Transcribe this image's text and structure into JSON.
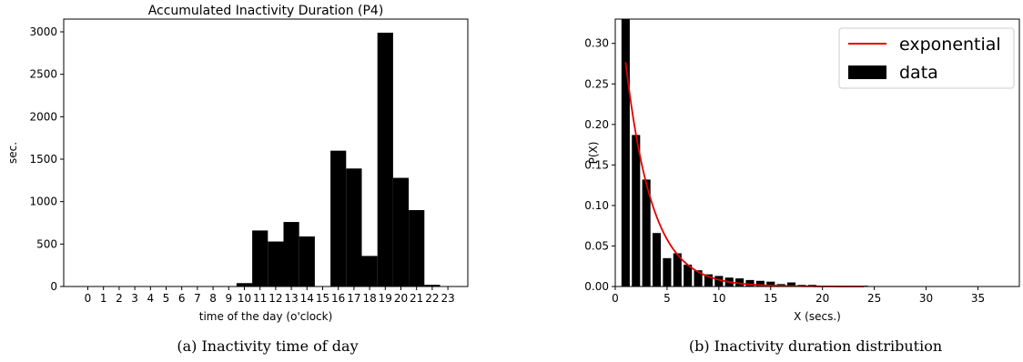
{
  "chart_data": [
    {
      "type": "bar",
      "title": "Accumulated Inactivity Duration (P4)",
      "xlabel": "time of the day (o'clock)",
      "ylabel": "sec.",
      "categories": [
        "0",
        "1",
        "2",
        "3",
        "4",
        "5",
        "6",
        "7",
        "8",
        "9",
        "10",
        "11",
        "12",
        "13",
        "14",
        "15",
        "16",
        "17",
        "18",
        "19",
        "20",
        "21",
        "22",
        "23"
      ],
      "values": [
        0,
        0,
        0,
        0,
        0,
        0,
        0,
        0,
        0,
        0,
        40,
        660,
        530,
        760,
        590,
        0,
        1600,
        1390,
        360,
        2990,
        1280,
        900,
        20,
        0
      ],
      "yticks": [
        0,
        500,
        1000,
        1500,
        2000,
        2500,
        3000
      ],
      "ylim": [
        0,
        3150
      ],
      "grid": false,
      "caption": "(a)  Inactivity time of day",
      "color": "#000000"
    },
    {
      "type": "bar",
      "title": "",
      "xlabel": "X (secs.)",
      "ylabel": "P(X)",
      "x": [
        1,
        2,
        3,
        4,
        5,
        6,
        7,
        8,
        9,
        10,
        11,
        12,
        13,
        14,
        15,
        16,
        17,
        18,
        19,
        20,
        21,
        22,
        23,
        24,
        25,
        26,
        27,
        28,
        29,
        30,
        31,
        32,
        33,
        34,
        35,
        36,
        37,
        38
      ],
      "values": [
        0.33,
        0.187,
        0.132,
        0.066,
        0.035,
        0.041,
        0.027,
        0.02,
        0.015,
        0.013,
        0.011,
        0.01,
        0.008,
        0.007,
        0.006,
        0.003,
        0.005,
        0.002,
        0.002,
        0.001,
        0.001,
        0.001,
        0.001,
        0.001,
        0.0005,
        0.0005,
        0.0005,
        0.0005,
        0.0005,
        0.0005,
        0.0005,
        0.0005,
        0.0005,
        0.0005,
        0.0005,
        0.0005,
        0.0005,
        0.0005
      ],
      "fit": {
        "name": "exponential",
        "x_range": [
          1,
          24
        ],
        "a": 0.277,
        "rate": 0.39,
        "color": "#e00000"
      },
      "legend": {
        "placement": "top-right",
        "entries": [
          "exponential",
          "data"
        ]
      },
      "xticks": [
        0,
        5,
        10,
        15,
        20,
        25,
        30,
        35
      ],
      "yticks": [
        "0.00",
        "0.05",
        "0.10",
        "0.15",
        "0.20",
        "0.25",
        "0.30"
      ],
      "xlim": [
        0,
        39
      ],
      "ylim": [
        0,
        0.33
      ],
      "grid": false,
      "caption": "(b)  Inactivity duration distribution",
      "color": "#000000"
    }
  ]
}
